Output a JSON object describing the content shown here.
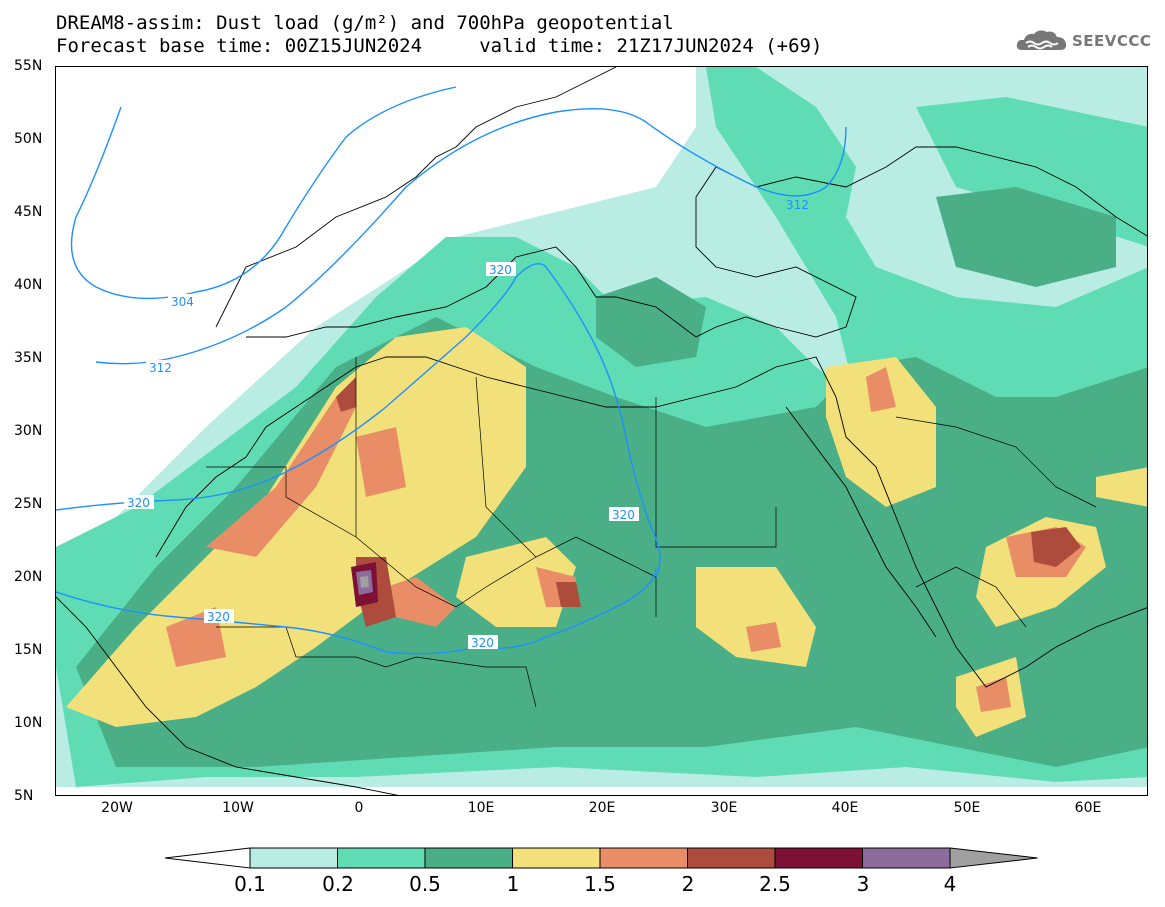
{
  "header": {
    "title_line1": "DREAM8-assim: Dust load (g/m²) and 700hPa geopotential",
    "title_line2": "Forecast base time: 00Z15JUN2024     valid time: 21Z17JUN2024 (+69)",
    "logo_text": "SEEVCCC"
  },
  "map": {
    "lat_labels": [
      "55N",
      "50N",
      "45N",
      "40N",
      "35N",
      "30N",
      "25N",
      "20N",
      "15N",
      "10N",
      "5N"
    ],
    "lon_labels": [
      "20W",
      "10W",
      "0",
      "10E",
      "20E",
      "30E",
      "40E",
      "50E",
      "60E"
    ],
    "lon_range": [
      -25,
      65
    ],
    "lat_range": [
      5,
      55
    ],
    "contour_labels": [
      "304",
      "312",
      "312",
      "320",
      "320",
      "320",
      "320",
      "320"
    ]
  },
  "colorbar": {
    "levels": [
      "0.1",
      "0.2",
      "0.5",
      "1",
      "1.5",
      "2",
      "2.5",
      "3",
      "4"
    ],
    "colors": [
      "#b9ede3",
      "#5fdcb4",
      "#4aae86",
      "#f2e07a",
      "#e98d66",
      "#ad4c3c",
      "#7d1035",
      "#8c6c9c",
      "#a0a0a0"
    ],
    "under_color": "#ffffff"
  }
}
